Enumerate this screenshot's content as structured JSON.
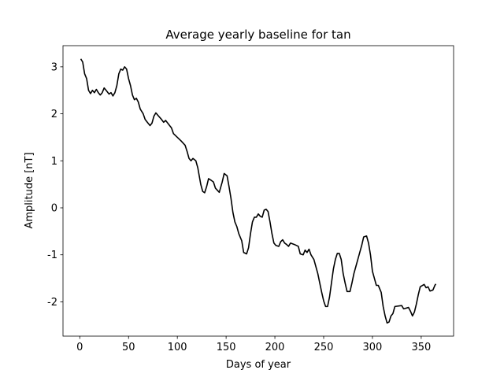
{
  "chart_data": {
    "type": "line",
    "title": "Average yearly baseline for tan",
    "xlabel": "Days of year",
    "ylabel": "Amplitude [nT]",
    "x": [
      1,
      3,
      5,
      7,
      9,
      11,
      13,
      15,
      17,
      19,
      21,
      23,
      25,
      27,
      30,
      32,
      34,
      36,
      38,
      40,
      42,
      44,
      46,
      48,
      50,
      52,
      54,
      56,
      58,
      60,
      62,
      65,
      67,
      70,
      72,
      74,
      76,
      78,
      80,
      83,
      86,
      88,
      91,
      94,
      96,
      100,
      104,
      108,
      110,
      112,
      114,
      116,
      119,
      121,
      124,
      126,
      128,
      130,
      132,
      135,
      137,
      139,
      143,
      146,
      148,
      151,
      153,
      155,
      157,
      159,
      161,
      163,
      166,
      168,
      171,
      173,
      175,
      177,
      179,
      181,
      183,
      185,
      187,
      189,
      191,
      193,
      195,
      197,
      199,
      201,
      204,
      206,
      208,
      210,
      212,
      214,
      216,
      220,
      224,
      226,
      229,
      231,
      233,
      235,
      237,
      240,
      242,
      244,
      246,
      248,
      250,
      252,
      254,
      256,
      258,
      260,
      262,
      264,
      266,
      268,
      270,
      272,
      274,
      277,
      279,
      281,
      283,
      285,
      287,
      289,
      291,
      294,
      296,
      298,
      300,
      302,
      304,
      306,
      309,
      311,
      313,
      315,
      317,
      319,
      321,
      323,
      330,
      332,
      337,
      339,
      341,
      343,
      345,
      347,
      349,
      353,
      355,
      357,
      359,
      362,
      364,
      365
    ],
    "series": [
      {
        "name": "tan",
        "color": "#000000",
        "values": [
          3.17,
          3.1,
          2.85,
          2.75,
          2.5,
          2.43,
          2.5,
          2.45,
          2.52,
          2.45,
          2.4,
          2.45,
          2.55,
          2.5,
          2.42,
          2.45,
          2.38,
          2.45,
          2.6,
          2.85,
          2.95,
          2.93,
          3.0,
          2.95,
          2.75,
          2.6,
          2.4,
          2.3,
          2.33,
          2.25,
          2.1,
          2.0,
          1.88,
          1.8,
          1.75,
          1.8,
          1.95,
          2.02,
          1.97,
          1.9,
          1.82,
          1.86,
          1.78,
          1.7,
          1.58,
          1.5,
          1.42,
          1.33,
          1.2,
          1.05,
          1.0,
          1.05,
          1.0,
          0.85,
          0.5,
          0.35,
          0.32,
          0.45,
          0.62,
          0.58,
          0.55,
          0.42,
          0.33,
          0.55,
          0.73,
          0.68,
          0.45,
          0.2,
          -0.1,
          -0.3,
          -0.4,
          -0.55,
          -0.7,
          -0.95,
          -0.98,
          -0.85,
          -0.55,
          -0.3,
          -0.2,
          -0.2,
          -0.13,
          -0.18,
          -0.2,
          -0.05,
          -0.03,
          -0.08,
          -0.3,
          -0.55,
          -0.75,
          -0.8,
          -0.82,
          -0.72,
          -0.68,
          -0.75,
          -0.78,
          -0.82,
          -0.75,
          -0.78,
          -0.82,
          -0.98,
          -1.0,
          -0.9,
          -0.95,
          -0.88,
          -1.0,
          -1.1,
          -1.25,
          -1.4,
          -1.6,
          -1.8,
          -1.98,
          -2.1,
          -2.1,
          -1.9,
          -1.6,
          -1.3,
          -1.1,
          -0.97,
          -0.97,
          -1.1,
          -1.4,
          -1.6,
          -1.78,
          -1.78,
          -1.6,
          -1.4,
          -1.25,
          -1.1,
          -0.95,
          -0.8,
          -0.62,
          -0.6,
          -0.75,
          -1.0,
          -1.35,
          -1.5,
          -1.65,
          -1.65,
          -1.8,
          -2.1,
          -2.3,
          -2.45,
          -2.43,
          -2.3,
          -2.25,
          -2.1,
          -2.08,
          -2.15,
          -2.12,
          -2.2,
          -2.3,
          -2.22,
          -2.05,
          -1.85,
          -1.68,
          -1.63,
          -1.7,
          -1.68,
          -1.77,
          -1.75,
          -1.65,
          -1.62
        ]
      }
    ],
    "xlim": [
      -17.2,
      383.2
    ],
    "xticks": [
      0,
      50,
      100,
      150,
      200,
      250,
      300,
      350
    ],
    "ylim": [
      -2.73,
      3.45
    ],
    "yticks": [
      -2,
      -1,
      0,
      1,
      2,
      3
    ],
    "grid": false
  }
}
